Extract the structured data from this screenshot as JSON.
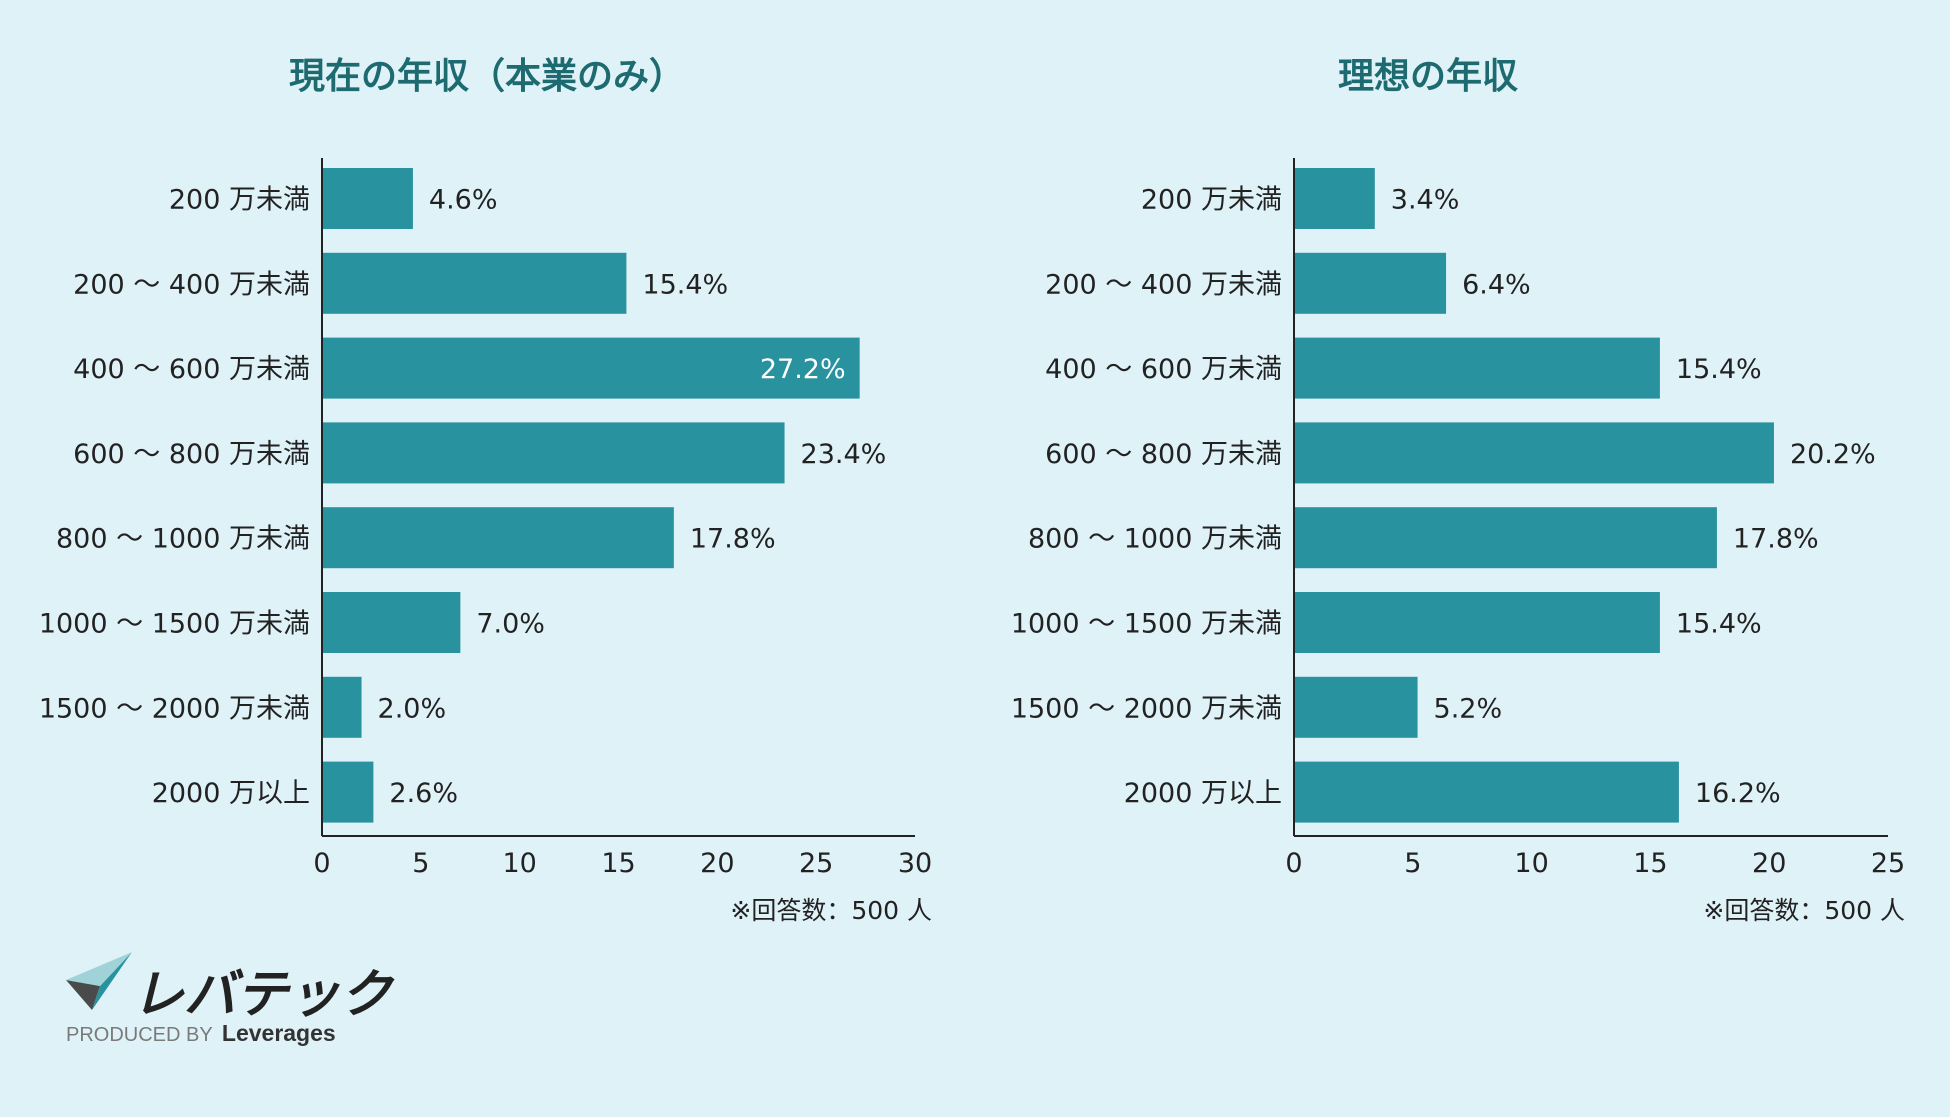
{
  "colors": {
    "bar": "#28929e",
    "title": "#1d6b70",
    "text": "#222222",
    "background": "#dff2f8"
  },
  "chart_data": [
    {
      "type": "bar",
      "orientation": "horizontal",
      "title": "現在の年収（本業のみ）",
      "categories": [
        "200 万未満",
        "200 〜 400 万未満",
        "400 〜 600 万未満",
        "600 〜 800 万未満",
        "800 〜 1000 万未満",
        "1000 〜 1500 万未満",
        "1500 〜 2000 万未満",
        "2000 万以上"
      ],
      "values": [
        4.6,
        15.4,
        27.2,
        23.4,
        17.8,
        7.0,
        2.0,
        2.6
      ],
      "value_labels": [
        "4.6%",
        "15.4%",
        "27.2%",
        "23.4%",
        "17.8%",
        "7.0%",
        "2.0%",
        "2.6%"
      ],
      "xlim": [
        0,
        30
      ],
      "xticks": [
        0,
        5,
        10,
        15,
        20,
        25,
        30
      ],
      "note": "※回答数：500 人"
    },
    {
      "type": "bar",
      "orientation": "horizontal",
      "title": "理想の年収",
      "categories": [
        "200 万未満",
        "200 〜 400 万未満",
        "400 〜 600 万未満",
        "600 〜 800 万未満",
        "800 〜 1000 万未満",
        "1000 〜 1500 万未満",
        "1500 〜 2000 万未満",
        "2000 万以上"
      ],
      "values": [
        3.4,
        6.4,
        15.4,
        20.2,
        17.8,
        15.4,
        5.2,
        16.2
      ],
      "value_labels": [
        "3.4%",
        "6.4%",
        "15.4%",
        "20.2%",
        "17.8%",
        "15.4%",
        "5.2%",
        "16.2%"
      ],
      "xlim": [
        0,
        25
      ],
      "xticks": [
        0,
        5,
        10,
        15,
        20,
        25
      ],
      "note": "※回答数：500 人"
    }
  ],
  "logo": {
    "wordmark": "レバテック",
    "produced_by": "PRODUCED BY",
    "brand": "Leverages"
  }
}
